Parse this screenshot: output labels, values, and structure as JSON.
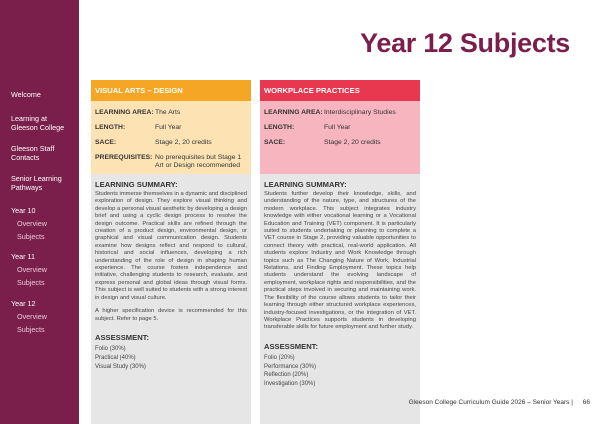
{
  "sidebar": {
    "welcome": "Welcome",
    "learning_line1": "Learning at",
    "learning_line2": "Gleeson College",
    "staff_line1": "Gleeson Staff",
    "staff_line2": "Contacts",
    "pathways_line1": "Senior Learning",
    "pathways_line2": "Pathways",
    "year10": "Year 10",
    "year10_overview": "Overview",
    "year10_subjects": "Subjects",
    "year11": "Year 11",
    "year11_overview": "Overview",
    "year11_subjects": "Subjects",
    "year12": "Year 12",
    "year12_overview": "Overview",
    "year12_subjects": "Subjects"
  },
  "page_title": "Year 12 Subjects",
  "columns": [
    {
      "heading": "VISUAL ARTS – DESIGN",
      "learning_area_label": "LEARNING AREA:",
      "learning_area": "The Arts",
      "length_label": "LENGTH:",
      "length": "Full Year",
      "sace_label": "SACE:",
      "sace": "Stage 2, 20 credits",
      "prereq_label": "PREREQUISITES:",
      "prereq": "No prerequisites but Stage 1 Art or Design recommended",
      "summary_heading": "LEARNING SUMMARY:",
      "summary_p1": "Students immerse themselves in a dynamic and disciplined exploration of design. They explore visual thinking and develop a personal visual aesthetic by developing a design brief and using a cyclic design process to resolve the design outcome. Practical skills are refined through the creation of a product design, environmental design, or graphical and visual communication design. Students examine how designs reflect and respond to cultural, historical and social influences, developing a rich understanding of the role of design in shaping human experience. The course fosters independence and initiative, challenging students to research, evaluate, and express personal and global ideas through visual forms. This subject is well suited to students with a strong interest in design and visual culture.",
      "summary_p2": "A higher specification device is recommended for this subject. Refer to page 5.",
      "assessment_heading": "ASSESSMENT:",
      "assessments": [
        "Folio (30%)",
        "Practical (40%)",
        "Visual Study (30%)"
      ]
    },
    {
      "heading": "WORKPLACE PRACTICES",
      "learning_area_label": "LEARNING AREA:",
      "learning_area": "Interdisciplinary Studies",
      "length_label": "LENGTH:",
      "length": "Full Year",
      "sace_label": "SACE:",
      "sace": "Stage 2, 20 credits",
      "summary_heading": "LEARNING SUMMARY:",
      "summary_p1": "Students further develop their knowledge, skills, and understanding of the nature, type, and structures of the modern workplace. This subject integrates industry knowledge with either vocational learning or a Vocational Education and Training (VET) component. It is particularly suited to students undertaking or planning to complete a VET course in Stage 2, providing valuable opportunities to connect theory with practical, real-world application. All students explore Industry and Work Knowledge through topics such as The Changing Nature of Work, Industrial Relations, and Finding Employment. These topics help students understand the evolving landscape of employment, workplace rights and responsibilities, and the practical steps involved in securing and maintaining work. The flexibility of the course allows students to tailor their learning through either structured workplace experiences, industry-focused investigations, or the integration of VET. Workplace Practices supports students in developing transferable skills for future employment and further study.",
      "assessment_heading": "ASSESSMENT:",
      "assessments": [
        "Folio (20%)",
        "Performance (30%)",
        "Reflection (20%)",
        "Investigation (30%)"
      ]
    }
  ],
  "footer": {
    "guide": "Gleeson College Curriculum Guide 2026 – Senior Years",
    "separator": "|",
    "page": "66"
  }
}
